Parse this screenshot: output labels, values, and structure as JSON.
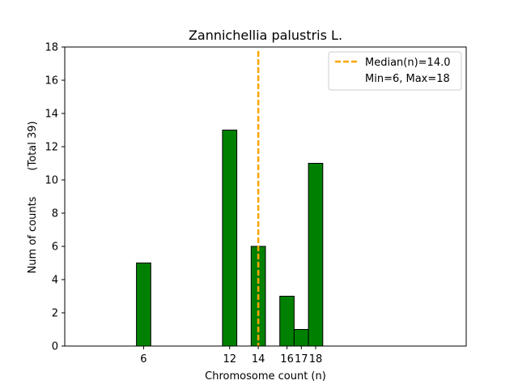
{
  "chart_data": {
    "type": "bar",
    "title": "Zannichellia palustris L.",
    "xlabel": "Chromosome count (n)",
    "ylabel": "Num of counts",
    "ylabel_total": "(Total 39)",
    "x": [
      6,
      12,
      14,
      16,
      17,
      18
    ],
    "values": [
      5,
      13,
      6,
      3,
      1,
      11
    ],
    "xtick_labels": [
      "6",
      "12",
      "14",
      "16",
      "17",
      "18"
    ],
    "yticks": [
      0,
      2,
      4,
      6,
      8,
      10,
      12,
      14,
      16,
      18
    ],
    "xlim": [
      0.5,
      28.5
    ],
    "ylim": [
      0,
      18
    ],
    "bar_width": 1,
    "bar_color": "#008000",
    "bar_edge_color": "#000000",
    "median": 14.0,
    "median_color": "#ffa500",
    "legend": {
      "position": "top-right",
      "entries": [
        "Median(n)=14.0",
        "Min=6, Max=18"
      ]
    },
    "grid": false
  }
}
